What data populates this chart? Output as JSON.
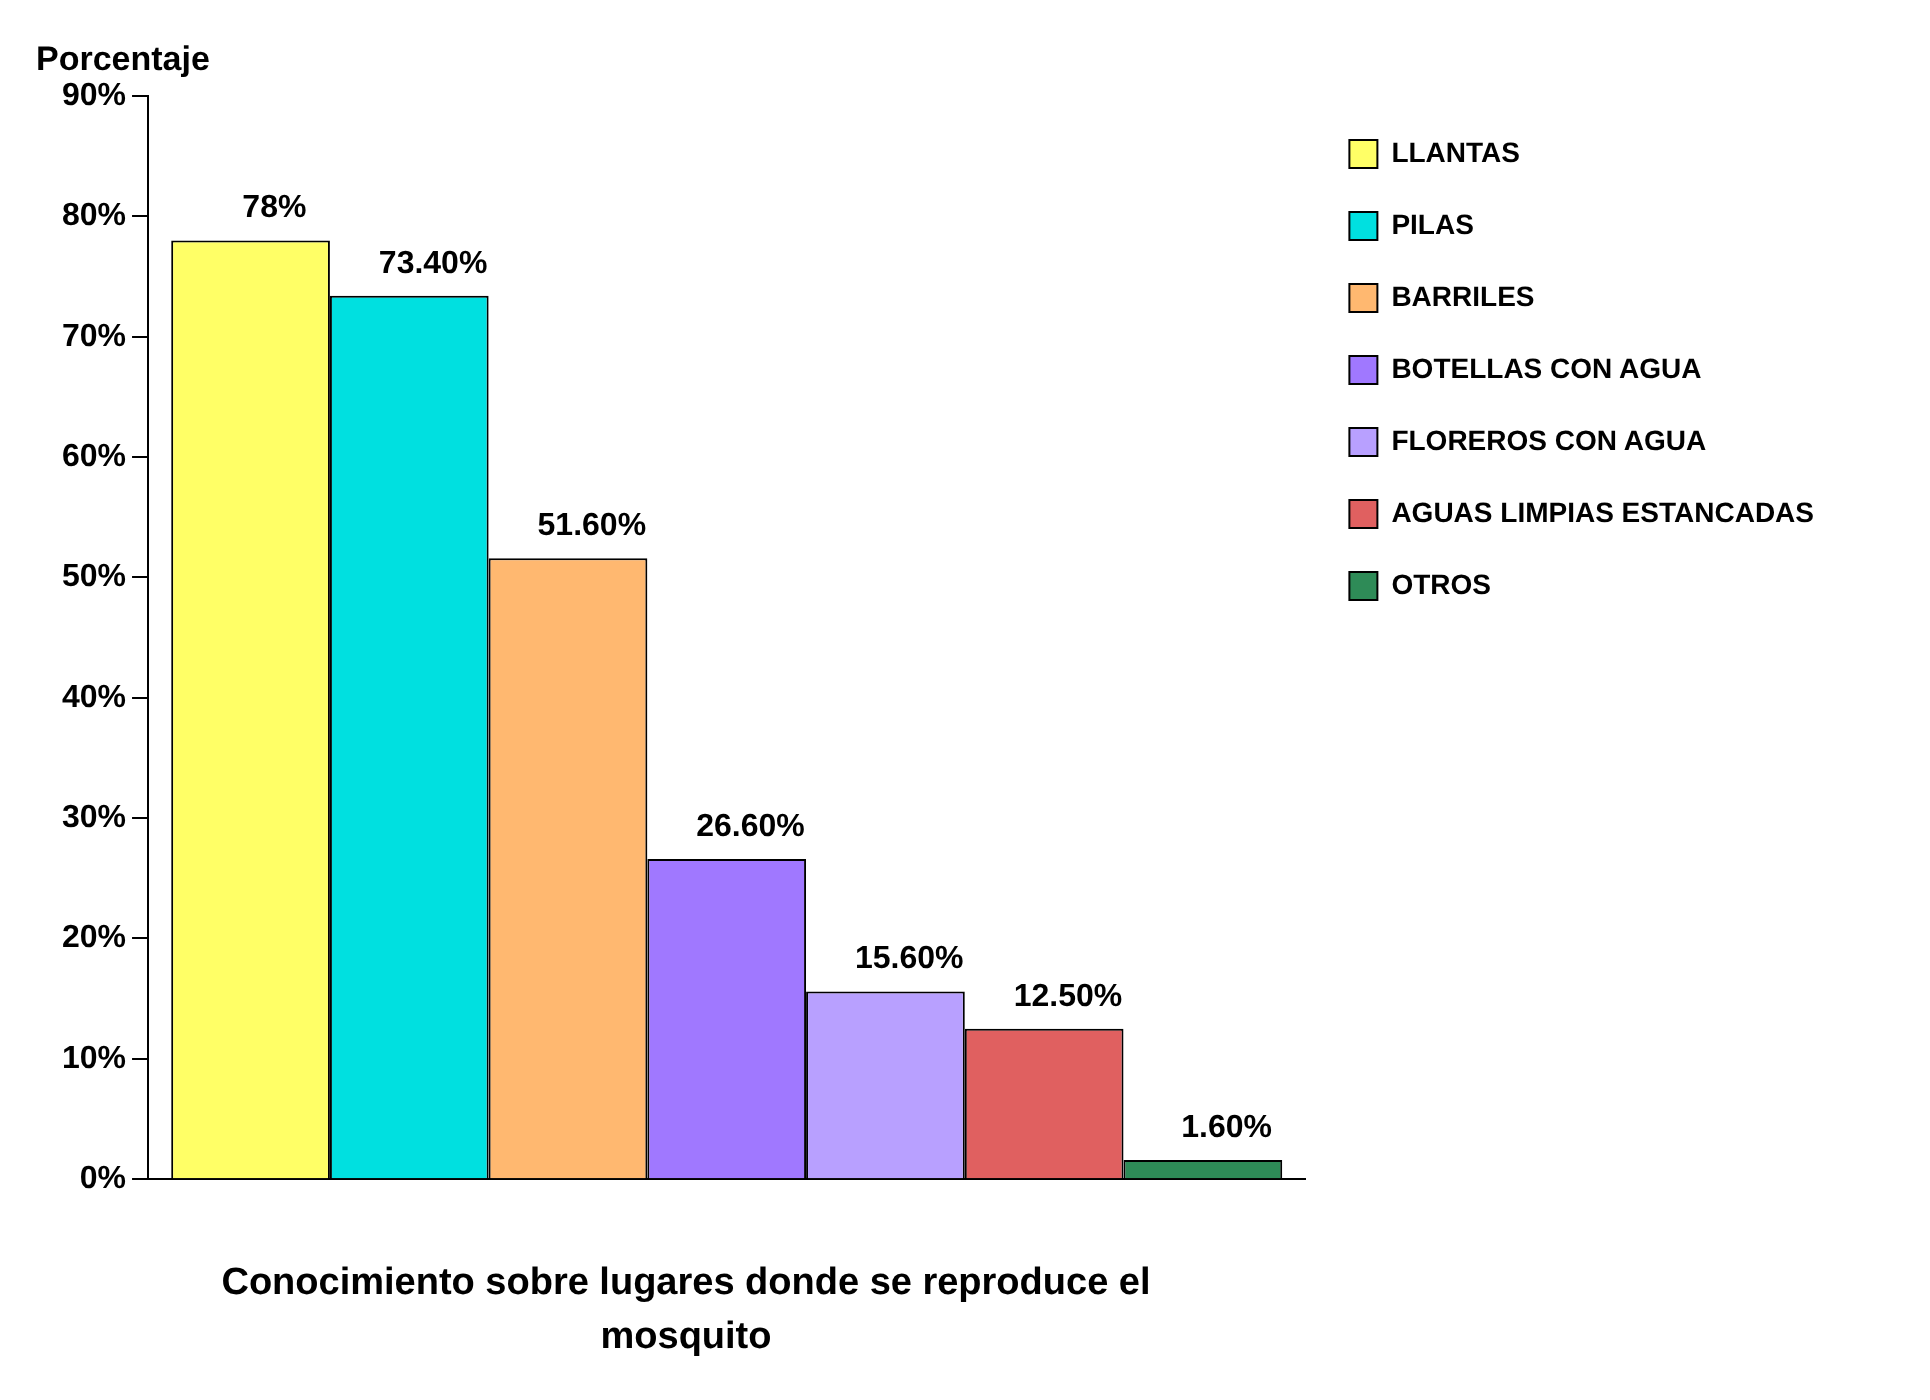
{
  "chart_data": {
    "type": "bar",
    "ylabel": "Porcentaje",
    "xlabel": "Conocimiento sobre lugares donde se reproduce el mosquito",
    "categories": [
      null
    ],
    "series": [
      {
        "name": "LLANTAS",
        "color": "#ffff66",
        "values": [
          78
        ],
        "value_labels": [
          "78%"
        ]
      },
      {
        "name": "PILAS",
        "color": "#00e0e0",
        "values": [
          73.4
        ],
        "value_labels": [
          "73.40%"
        ]
      },
      {
        "name": "BARRILES",
        "color": "#ffb870",
        "values": [
          51.6
        ],
        "value_labels": [
          "51.60%"
        ]
      },
      {
        "name": "BOTELLAS CON AGUA",
        "color": "#a078ff",
        "values": [
          26.6
        ],
        "value_labels": [
          "26.60%"
        ]
      },
      {
        "name": "FLOREROS CON AGUA",
        "color": "#b8a0ff",
        "values": [
          15.6
        ],
        "value_labels": [
          "15.60%"
        ]
      },
      {
        "name": "AGUAS LIMPIAS ESTANCADAS",
        "color": "#e06060",
        "values": [
          12.5
        ],
        "value_labels": [
          "12.50%"
        ]
      },
      {
        "name": "OTROS",
        "color": "#2e8b57",
        "values": [
          1.6
        ],
        "value_labels": [
          "1.60%"
        ]
      }
    ],
    "ylim": [
      0,
      90
    ],
    "yticks": [
      {
        "value": 0,
        "label": "0%"
      },
      {
        "value": 10,
        "label": "10%"
      },
      {
        "value": 20,
        "label": "20%"
      },
      {
        "value": 30,
        "label": "30%"
      },
      {
        "value": 40,
        "label": "40%"
      },
      {
        "value": 50,
        "label": "50%"
      },
      {
        "value": 60,
        "label": "60%"
      },
      {
        "value": 70,
        "label": "70%"
      },
      {
        "value": 80,
        "label": "80%"
      },
      {
        "value": 90,
        "label": "90%"
      }
    ],
    "grid": false,
    "legend": "right"
  }
}
